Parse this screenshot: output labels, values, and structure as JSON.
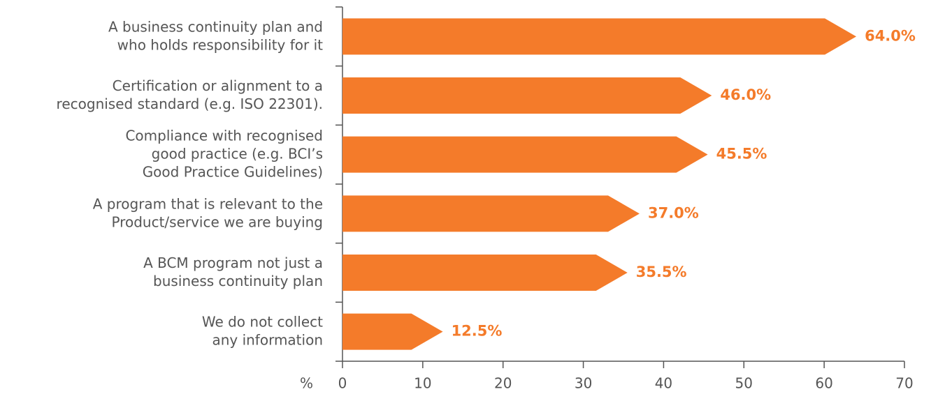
{
  "chart_data": {
    "type": "bar",
    "orientation": "horizontal",
    "categories": [
      [
        "A business continuity plan and",
        "who holds responsibility for it"
      ],
      [
        "Certification or alignment to a",
        "recognised standard (e.g. ISO 22301)."
      ],
      [
        "Compliance with recognised",
        "good practice (e.g. BCI’s",
        "Good Practice Guidelines)"
      ],
      [
        "A program that is relevant to the",
        "Product/service we are buying"
      ],
      [
        "A BCM program not just a",
        "business continuity plan"
      ],
      [
        "We do not collect",
        "any information"
      ]
    ],
    "values": [
      64.0,
      46.0,
      45.5,
      37.0,
      35.5,
      12.5
    ],
    "value_labels": [
      "64.0%",
      "46.0%",
      "45.5%",
      "37.0%",
      "35.5%",
      "12.5%"
    ],
    "color": "#f47b2a",
    "xlabel": "%",
    "xlim": [
      0,
      70
    ],
    "xticks": [
      0,
      10,
      20,
      30,
      40,
      50,
      60,
      70
    ]
  }
}
